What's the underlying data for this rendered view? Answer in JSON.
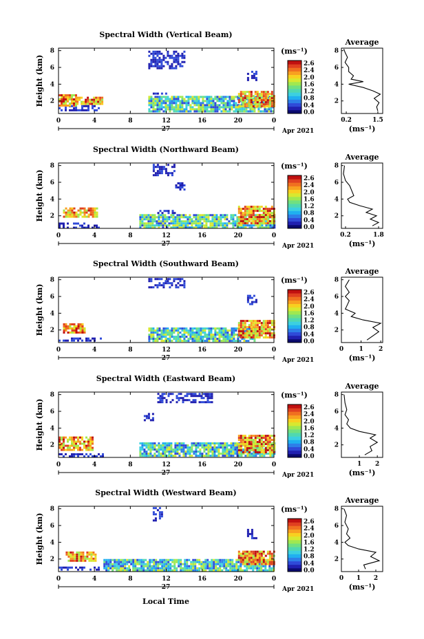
{
  "figure": {
    "xlabel": "Local Time",
    "date_label": "Apr 2021",
    "day_label": "27",
    "colorbar_unit": "(ms⁻¹)",
    "avg_title": "Average",
    "avg_xlabel": "(ms⁻¹)",
    "colorscale": [
      "#0a0a6e",
      "#2020b0",
      "#2f4ad8",
      "#2d7fe8",
      "#20b0f0",
      "#3cd0e0",
      "#50d8b0",
      "#70e080",
      "#a0e850",
      "#d8e830",
      "#f8d020",
      "#f8a020",
      "#f07020",
      "#e04020",
      "#c01010"
    ],
    "colorbar_ticks": [
      "2.6",
      "2.4",
      "2.0",
      "1.6",
      "1.2",
      "0.8",
      "0.4",
      "0.0"
    ]
  },
  "chart_data": [
    {
      "type": "heatmap",
      "title": "Spectral Width (Vertical Beam)",
      "ylabel": "Height (km)",
      "xlabel": "Local Time",
      "x_ticks": [
        "0",
        "4",
        "8",
        "12",
        "16",
        "20",
        "0"
      ],
      "y_ticks": [
        "2",
        "4",
        "6",
        "8"
      ],
      "xlim": [
        0,
        24
      ],
      "ylim": [
        0.5,
        8.3
      ],
      "colorbar": {
        "label": "(ms⁻¹)",
        "ticks": [
          "2.6",
          "2.4",
          "2.0",
          "1.6",
          "1.2",
          "0.8",
          "0.4",
          "0.0"
        ]
      },
      "regions": [
        {
          "hours": [
            0,
            4.5
          ],
          "km": [
            1.0,
            1.5
          ],
          "level": "low"
        },
        {
          "hours": [
            0,
            2.0
          ],
          "km": [
            1.5,
            2.8
          ],
          "level": "high"
        },
        {
          "hours": [
            2.0,
            4.8
          ],
          "km": [
            1.6,
            2.5
          ],
          "level": "high"
        },
        {
          "hours": [
            10,
            24
          ],
          "km": [
            0.8,
            2.6
          ],
          "level": "mid"
        },
        {
          "hours": [
            20,
            24
          ],
          "km": [
            1.3,
            3.2
          ],
          "level": "high"
        },
        {
          "hours": [
            10,
            14
          ],
          "km": [
            6.0,
            8.0
          ],
          "level": "low"
        },
        {
          "hours": [
            10.5,
            12.5
          ],
          "km": [
            2.8,
            3.0
          ],
          "level": "low"
        },
        {
          "hours": [
            21,
            22
          ],
          "km": [
            4.6,
            5.6
          ],
          "level": "low"
        }
      ],
      "average": {
        "x_ticks": [
          "0.2",
          "1.5"
        ],
        "xlim": [
          0,
          1.7
        ],
        "y_ticks": [
          "2",
          "4",
          "6",
          "8"
        ],
        "profile": [
          [
            1.5,
            0.8
          ],
          [
            1.45,
            1.3
          ],
          [
            1.55,
            1.8
          ],
          [
            1.35,
            2.3
          ],
          [
            1.6,
            2.8
          ],
          [
            1.3,
            3.2
          ],
          [
            0.9,
            3.6
          ],
          [
            0.3,
            4.0
          ],
          [
            0.9,
            4.3
          ],
          [
            0.4,
            4.6
          ],
          [
            0.5,
            5.0
          ],
          [
            0.3,
            5.5
          ],
          [
            0.3,
            6.0
          ],
          [
            0.15,
            6.6
          ],
          [
            0.25,
            7.2
          ],
          [
            0.15,
            7.8
          ],
          [
            0.1,
            8.2
          ]
        ]
      }
    },
    {
      "type": "heatmap",
      "title": "Spectral Width (Northward Beam)",
      "ylabel": "Height (km)",
      "xlabel": "Local Time",
      "x_ticks": [
        "0",
        "4",
        "8",
        "12",
        "16",
        "20",
        "0"
      ],
      "y_ticks": [
        "2",
        "4",
        "6",
        "8"
      ],
      "xlim": [
        0,
        24
      ],
      "ylim": [
        0.5,
        8.3
      ],
      "colorbar": {
        "label": "(ms⁻¹)",
        "ticks": [
          "2.6",
          "2.4",
          "2.0",
          "1.6",
          "1.2",
          "0.8",
          "0.4",
          "0.0"
        ]
      },
      "regions": [
        {
          "hours": [
            0,
            4.5
          ],
          "km": [
            0.7,
            1.2
          ],
          "level": "low"
        },
        {
          "hours": [
            0.5,
            4.3
          ],
          "km": [
            1.8,
            3.0
          ],
          "level": "high"
        },
        {
          "hours": [
            9,
            24
          ],
          "km": [
            0.7,
            2.2
          ],
          "level": "mid"
        },
        {
          "hours": [
            20,
            24
          ],
          "km": [
            1.2,
            3.2
          ],
          "level": "high"
        },
        {
          "hours": [
            10.5,
            13
          ],
          "km": [
            6.8,
            8.2
          ],
          "level": "low"
        },
        {
          "hours": [
            13,
            14
          ],
          "km": [
            5.2,
            6.0
          ],
          "level": "low"
        },
        {
          "hours": [
            11,
            13
          ],
          "km": [
            2.4,
            2.7
          ],
          "level": "low"
        }
      ],
      "average": {
        "x_ticks": [
          "0.2",
          "1.8"
        ],
        "xlim": [
          0,
          2.0
        ],
        "y_ticks": [
          "2",
          "4",
          "6",
          "8"
        ],
        "profile": [
          [
            1.5,
            0.8
          ],
          [
            1.8,
            1.2
          ],
          [
            1.4,
            1.6
          ],
          [
            1.7,
            2.0
          ],
          [
            1.2,
            2.4
          ],
          [
            1.5,
            2.8
          ],
          [
            0.9,
            3.2
          ],
          [
            0.4,
            3.6
          ],
          [
            0.3,
            4.0
          ],
          [
            0.6,
            4.4
          ],
          [
            0.5,
            5.0
          ],
          [
            0.4,
            5.6
          ],
          [
            0.2,
            6.2
          ],
          [
            0.1,
            7.0
          ],
          [
            0.15,
            8.0
          ]
        ]
      }
    },
    {
      "type": "heatmap",
      "title": "Spectral Width (Southward Beam)",
      "ylabel": "Height (km)",
      "xlabel": "Local Time",
      "x_ticks": [
        "0",
        "4",
        "8",
        "12",
        "16",
        "20",
        "0"
      ],
      "y_ticks": [
        "2",
        "4",
        "6",
        "8"
      ],
      "xlim": [
        0,
        24
      ],
      "ylim": [
        0.5,
        8.3
      ],
      "colorbar": {
        "label": "(ms⁻¹)",
        "ticks": [
          "2.6",
          "2.4",
          "2.0",
          "1.6",
          "1.2",
          "0.8",
          "0.4",
          "0.0"
        ]
      },
      "regions": [
        {
          "hours": [
            0,
            4.8
          ],
          "km": [
            0.7,
            1.1
          ],
          "level": "low"
        },
        {
          "hours": [
            0.5,
            3.0
          ],
          "km": [
            1.6,
            2.8
          ],
          "level": "high"
        },
        {
          "hours": [
            10,
            22
          ],
          "km": [
            0.7,
            2.3
          ],
          "level": "mid"
        },
        {
          "hours": [
            20,
            24
          ],
          "km": [
            1.2,
            3.2
          ],
          "level": "high"
        },
        {
          "hours": [
            21,
            22
          ],
          "km": [
            5.2,
            6.2
          ],
          "level": "low"
        },
        {
          "hours": [
            10,
            14
          ],
          "km": [
            7.2,
            8.2
          ],
          "level": "low"
        }
      ],
      "average": {
        "x_ticks": [
          "0",
          "1",
          "2"
        ],
        "xlim": [
          0,
          2.1
        ],
        "y_ticks": [
          "2",
          "4",
          "6",
          "8"
        ],
        "profile": [
          [
            1.3,
            0.8
          ],
          [
            1.6,
            1.3
          ],
          [
            1.9,
            1.8
          ],
          [
            1.6,
            2.3
          ],
          [
            2.0,
            2.8
          ],
          [
            1.1,
            3.2
          ],
          [
            0.5,
            3.6
          ],
          [
            0.7,
            4.0
          ],
          [
            0.2,
            4.5
          ],
          [
            0.3,
            5.0
          ],
          [
            0.4,
            5.5
          ],
          [
            0.2,
            6.0
          ],
          [
            0.4,
            6.5
          ],
          [
            0.2,
            7.2
          ],
          [
            0.4,
            8.0
          ]
        ]
      }
    },
    {
      "type": "heatmap",
      "title": "Spectral Width (Eastward Beam)",
      "ylabel": "Height (km)",
      "xlabel": "Local Time",
      "x_ticks": [
        "0",
        "4",
        "8",
        "12",
        "16",
        "20",
        "0"
      ],
      "y_ticks": [
        "2",
        "4",
        "6",
        "8"
      ],
      "xlim": [
        0,
        24
      ],
      "ylim": [
        0.5,
        8.3
      ],
      "colorbar": {
        "label": "(ms⁻¹)",
        "ticks": [
          "2.6",
          "2.4",
          "2.0",
          "1.6",
          "1.2",
          "0.8",
          "0.4",
          "0.0"
        ]
      },
      "regions": [
        {
          "hours": [
            0,
            5
          ],
          "km": [
            0.6,
            1.0
          ],
          "level": "low"
        },
        {
          "hours": [
            0,
            3.8
          ],
          "km": [
            1.5,
            3.0
          ],
          "level": "high"
        },
        {
          "hours": [
            9,
            24
          ],
          "km": [
            0.7,
            2.3
          ],
          "level": "mid"
        },
        {
          "hours": [
            20,
            24
          ],
          "km": [
            1.2,
            3.2
          ],
          "level": "high"
        },
        {
          "hours": [
            11,
            17
          ],
          "km": [
            7.0,
            8.2
          ],
          "level": "low"
        },
        {
          "hours": [
            9.5,
            10.5
          ],
          "km": [
            5.0,
            5.8
          ],
          "level": "low"
        }
      ],
      "average": {
        "x_ticks": [
          "1",
          "2"
        ],
        "xlim": [
          0,
          2.3
        ],
        "y_ticks": [
          "2",
          "4",
          "6",
          "8"
        ],
        "profile": [
          [
            1.3,
            0.8
          ],
          [
            1.7,
            1.3
          ],
          [
            1.6,
            1.8
          ],
          [
            2.0,
            2.3
          ],
          [
            1.6,
            2.8
          ],
          [
            1.9,
            3.2
          ],
          [
            1.0,
            3.6
          ],
          [
            0.5,
            4.0
          ],
          [
            0.3,
            4.5
          ],
          [
            0.4,
            5.0
          ],
          [
            0.2,
            5.6
          ],
          [
            0.3,
            6.2
          ],
          [
            0.2,
            7.0
          ],
          [
            0.15,
            8.0
          ]
        ]
      }
    },
    {
      "type": "heatmap",
      "title": "Spectral Width (Westward Beam)",
      "ylabel": "Height (km)",
      "xlabel": "Local Time",
      "x_ticks": [
        "0",
        "4",
        "8",
        "12",
        "16",
        "20",
        "0"
      ],
      "y_ticks": [
        "2",
        "4",
        "6",
        "8"
      ],
      "xlim": [
        0,
        24
      ],
      "ylim": [
        0.5,
        8.3
      ],
      "colorbar": {
        "label": "(ms⁻¹)",
        "ticks": [
          "2.6",
          "2.4",
          "2.0",
          "1.6",
          "1.2",
          "0.8",
          "0.4",
          "0.0"
        ]
      },
      "regions": [
        {
          "hours": [
            0,
            4.5
          ],
          "km": [
            0.7,
            1.1
          ],
          "level": "low"
        },
        {
          "hours": [
            0.8,
            4.2
          ],
          "km": [
            1.8,
            2.9
          ],
          "level": "high"
        },
        {
          "hours": [
            5,
            24
          ],
          "km": [
            0.6,
            2.0
          ],
          "level": "mid"
        },
        {
          "hours": [
            20,
            24
          ],
          "km": [
            1.5,
            3.0
          ],
          "level": "high"
        },
        {
          "hours": [
            10.5,
            11.5
          ],
          "km": [
            6.5,
            8.2
          ],
          "level": "low"
        },
        {
          "hours": [
            21,
            22
          ],
          "km": [
            4.5,
            5.6
          ],
          "level": "low"
        }
      ],
      "average": {
        "x_ticks": [
          "0",
          "1",
          "2"
        ],
        "xlim": [
          0,
          2.4
        ],
        "y_ticks": [
          "2",
          "4",
          "6",
          "8"
        ],
        "profile": [
          [
            1.4,
            0.8
          ],
          [
            1.3,
            1.3
          ],
          [
            2.2,
            1.8
          ],
          [
            1.7,
            2.3
          ],
          [
            2.0,
            2.8
          ],
          [
            1.0,
            3.2
          ],
          [
            0.4,
            3.6
          ],
          [
            0.2,
            4.0
          ],
          [
            0.5,
            4.5
          ],
          [
            0.3,
            5.0
          ],
          [
            0.4,
            5.6
          ],
          [
            0.2,
            6.4
          ],
          [
            0.3,
            7.2
          ],
          [
            0.15,
            8.0
          ]
        ]
      }
    }
  ]
}
